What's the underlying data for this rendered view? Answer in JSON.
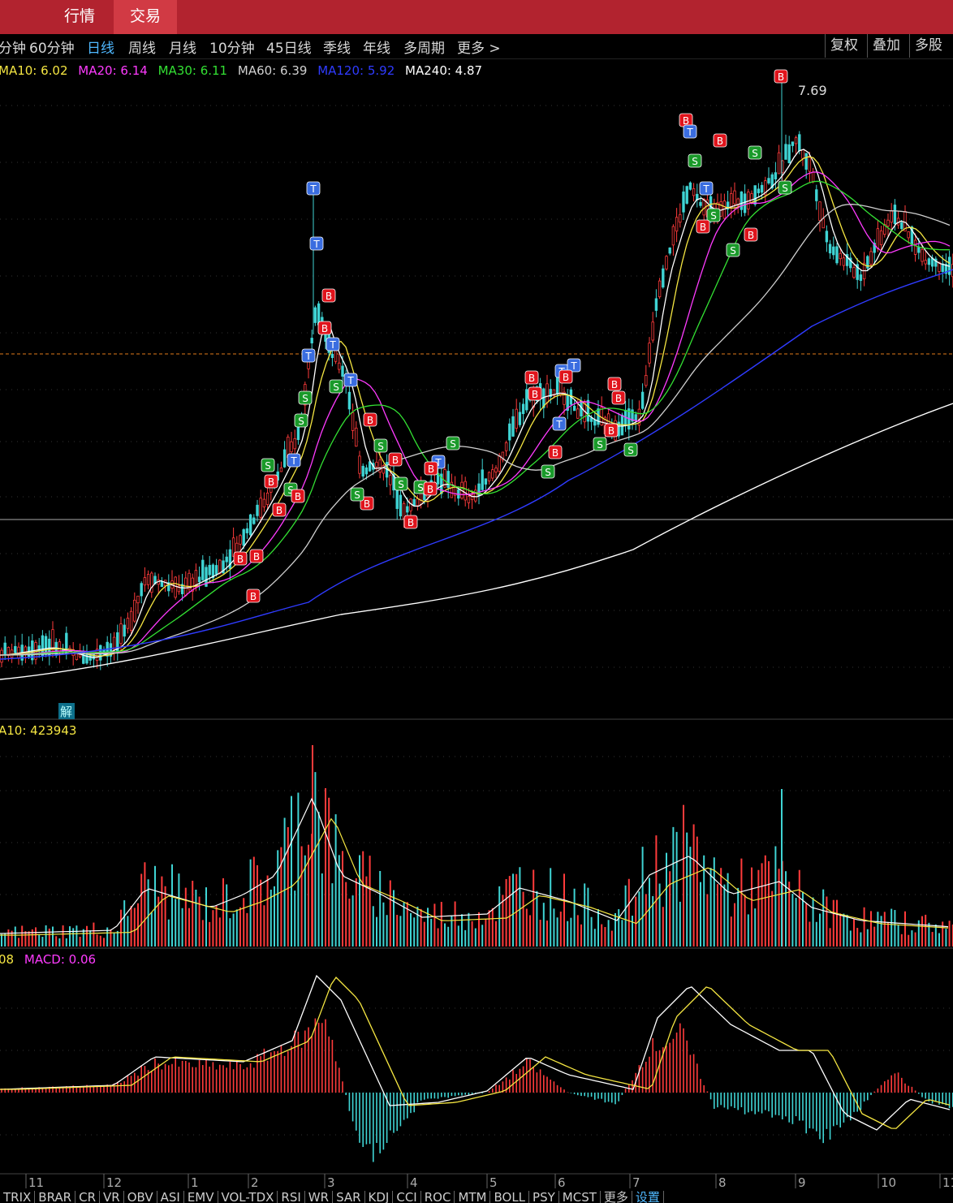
{
  "header": {
    "tabs": [
      {
        "label": "行情",
        "active": false
      },
      {
        "label": "交易",
        "active": true
      }
    ]
  },
  "period_bar": {
    "items": [
      "分钟",
      "60分钟",
      "日线",
      "周线",
      "月线",
      "10分钟",
      "45日线",
      "季线",
      "年线",
      "多周期",
      "更多 >"
    ],
    "selected": "日线",
    "right_buttons": [
      "复权",
      "叠加",
      "多股"
    ]
  },
  "main_legend": {
    "ma10": "MA10: 6.02",
    "ma20": "MA20: 6.14",
    "ma30": "MA30: 6.11",
    "ma60": "MA60: 6.39",
    "ma120": "MA120: 5.92",
    "ma240": "MA240: 4.87",
    "colors": {
      "ma10": "#f5e642",
      "ma20": "#ff3bff",
      "ma30": "#33e033",
      "ma60": "#d0d0d0",
      "ma120": "#2f3bff",
      "ma240": "#ffffff"
    }
  },
  "price_high_label": "7.69",
  "unlock_marker": "解",
  "volume_legend": "A10: 423943",
  "macd_legend": {
    "left": "08",
    "macd": "MACD: 0.06"
  },
  "x_axis_months": [
    "11",
    "12",
    "1",
    "2",
    "3",
    "4",
    "5",
    "6",
    "7",
    "8",
    "9",
    "10",
    "11"
  ],
  "signal_letters": {
    "buy": "B",
    "sell": "S",
    "t": "T"
  },
  "indicator_tabs": [
    "TRIX",
    "BRAR",
    "CR",
    "VR",
    "OBV",
    "ASI",
    "EMV",
    "VOL-TDX",
    "RSI",
    "WR",
    "SAR",
    "KDJ",
    "CCI",
    "ROC",
    "MTM",
    "BOLL",
    "PSY",
    "MCST",
    "更多",
    "设置"
  ],
  "indicator_selected": "设置",
  "colors": {
    "up": "#ff3b3b",
    "down": "#3fd4d4",
    "orange_line": "#e07a1a",
    "tab_bar": "#b2232f"
  }
}
